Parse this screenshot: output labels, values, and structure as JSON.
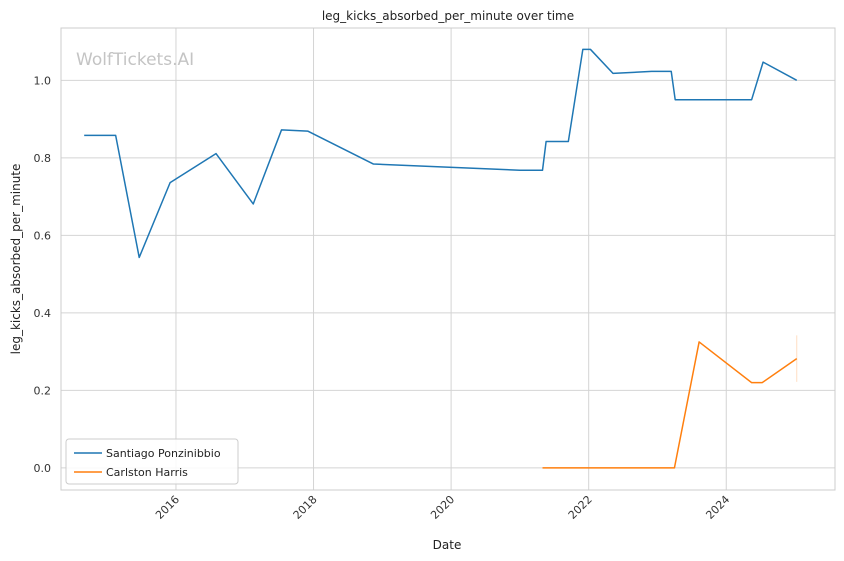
{
  "chart_data": {
    "type": "line",
    "title": "leg_kicks_absorbed_per_minute over time",
    "xlabel": "Date",
    "ylabel": "leg_kicks_absorbed_per_minute",
    "watermark": "WolfTickets.AI",
    "grid": true,
    "legend_position": "lower-left",
    "x_ticks": [
      "2016",
      "2018",
      "2020",
      "2022",
      "2024"
    ],
    "y_ticks": [
      "0.0",
      "0.2",
      "0.4",
      "0.6",
      "0.8",
      "1.0"
    ],
    "xlim": [
      "2014-05-01",
      "2025-08-01"
    ],
    "ylim": [
      -0.057,
      1.135
    ],
    "series": [
      {
        "name": "Santiago Ponzinibbio",
        "color": "#1f77b4",
        "points": [
          {
            "x": "2014-09-01",
            "y": 0.858
          },
          {
            "x": "2015-02-15",
            "y": 0.858
          },
          {
            "x": "2015-06-20",
            "y": 0.543
          },
          {
            "x": "2015-12-01",
            "y": 0.736
          },
          {
            "x": "2016-08-01",
            "y": 0.811
          },
          {
            "x": "2017-02-15",
            "y": 0.681
          },
          {
            "x": "2017-07-15",
            "y": 0.872
          },
          {
            "x": "2017-12-01",
            "y": 0.869
          },
          {
            "x": "2018-11-15",
            "y": 0.784
          },
          {
            "x": "2021-01-01",
            "y": 0.768
          },
          {
            "x": "2021-05-01",
            "y": 0.768
          },
          {
            "x": "2021-05-20",
            "y": 0.842
          },
          {
            "x": "2021-09-15",
            "y": 0.842
          },
          {
            "x": "2021-12-01",
            "y": 1.08
          },
          {
            "x": "2022-01-10",
            "y": 1.08
          },
          {
            "x": "2022-05-10",
            "y": 1.018
          },
          {
            "x": "2022-12-01",
            "y": 1.023
          },
          {
            "x": "2023-03-15",
            "y": 1.023
          },
          {
            "x": "2023-04-05",
            "y": 0.95
          },
          {
            "x": "2024-05-15",
            "y": 0.95
          },
          {
            "x": "2024-07-15",
            "y": 1.047
          },
          {
            "x": "2025-01-10",
            "y": 1.0
          }
        ]
      },
      {
        "name": "Carlston Harris",
        "color": "#ff7f0e",
        "points": [
          {
            "x": "2021-05-01",
            "y": 0.0
          },
          {
            "x": "2023-04-01",
            "y": 0.0
          },
          {
            "x": "2023-08-10",
            "y": 0.325
          },
          {
            "x": "2024-05-15",
            "y": 0.22
          },
          {
            "x": "2024-07-10",
            "y": 0.22
          },
          {
            "x": "2025-01-10",
            "y": 0.282
          }
        ]
      }
    ]
  }
}
